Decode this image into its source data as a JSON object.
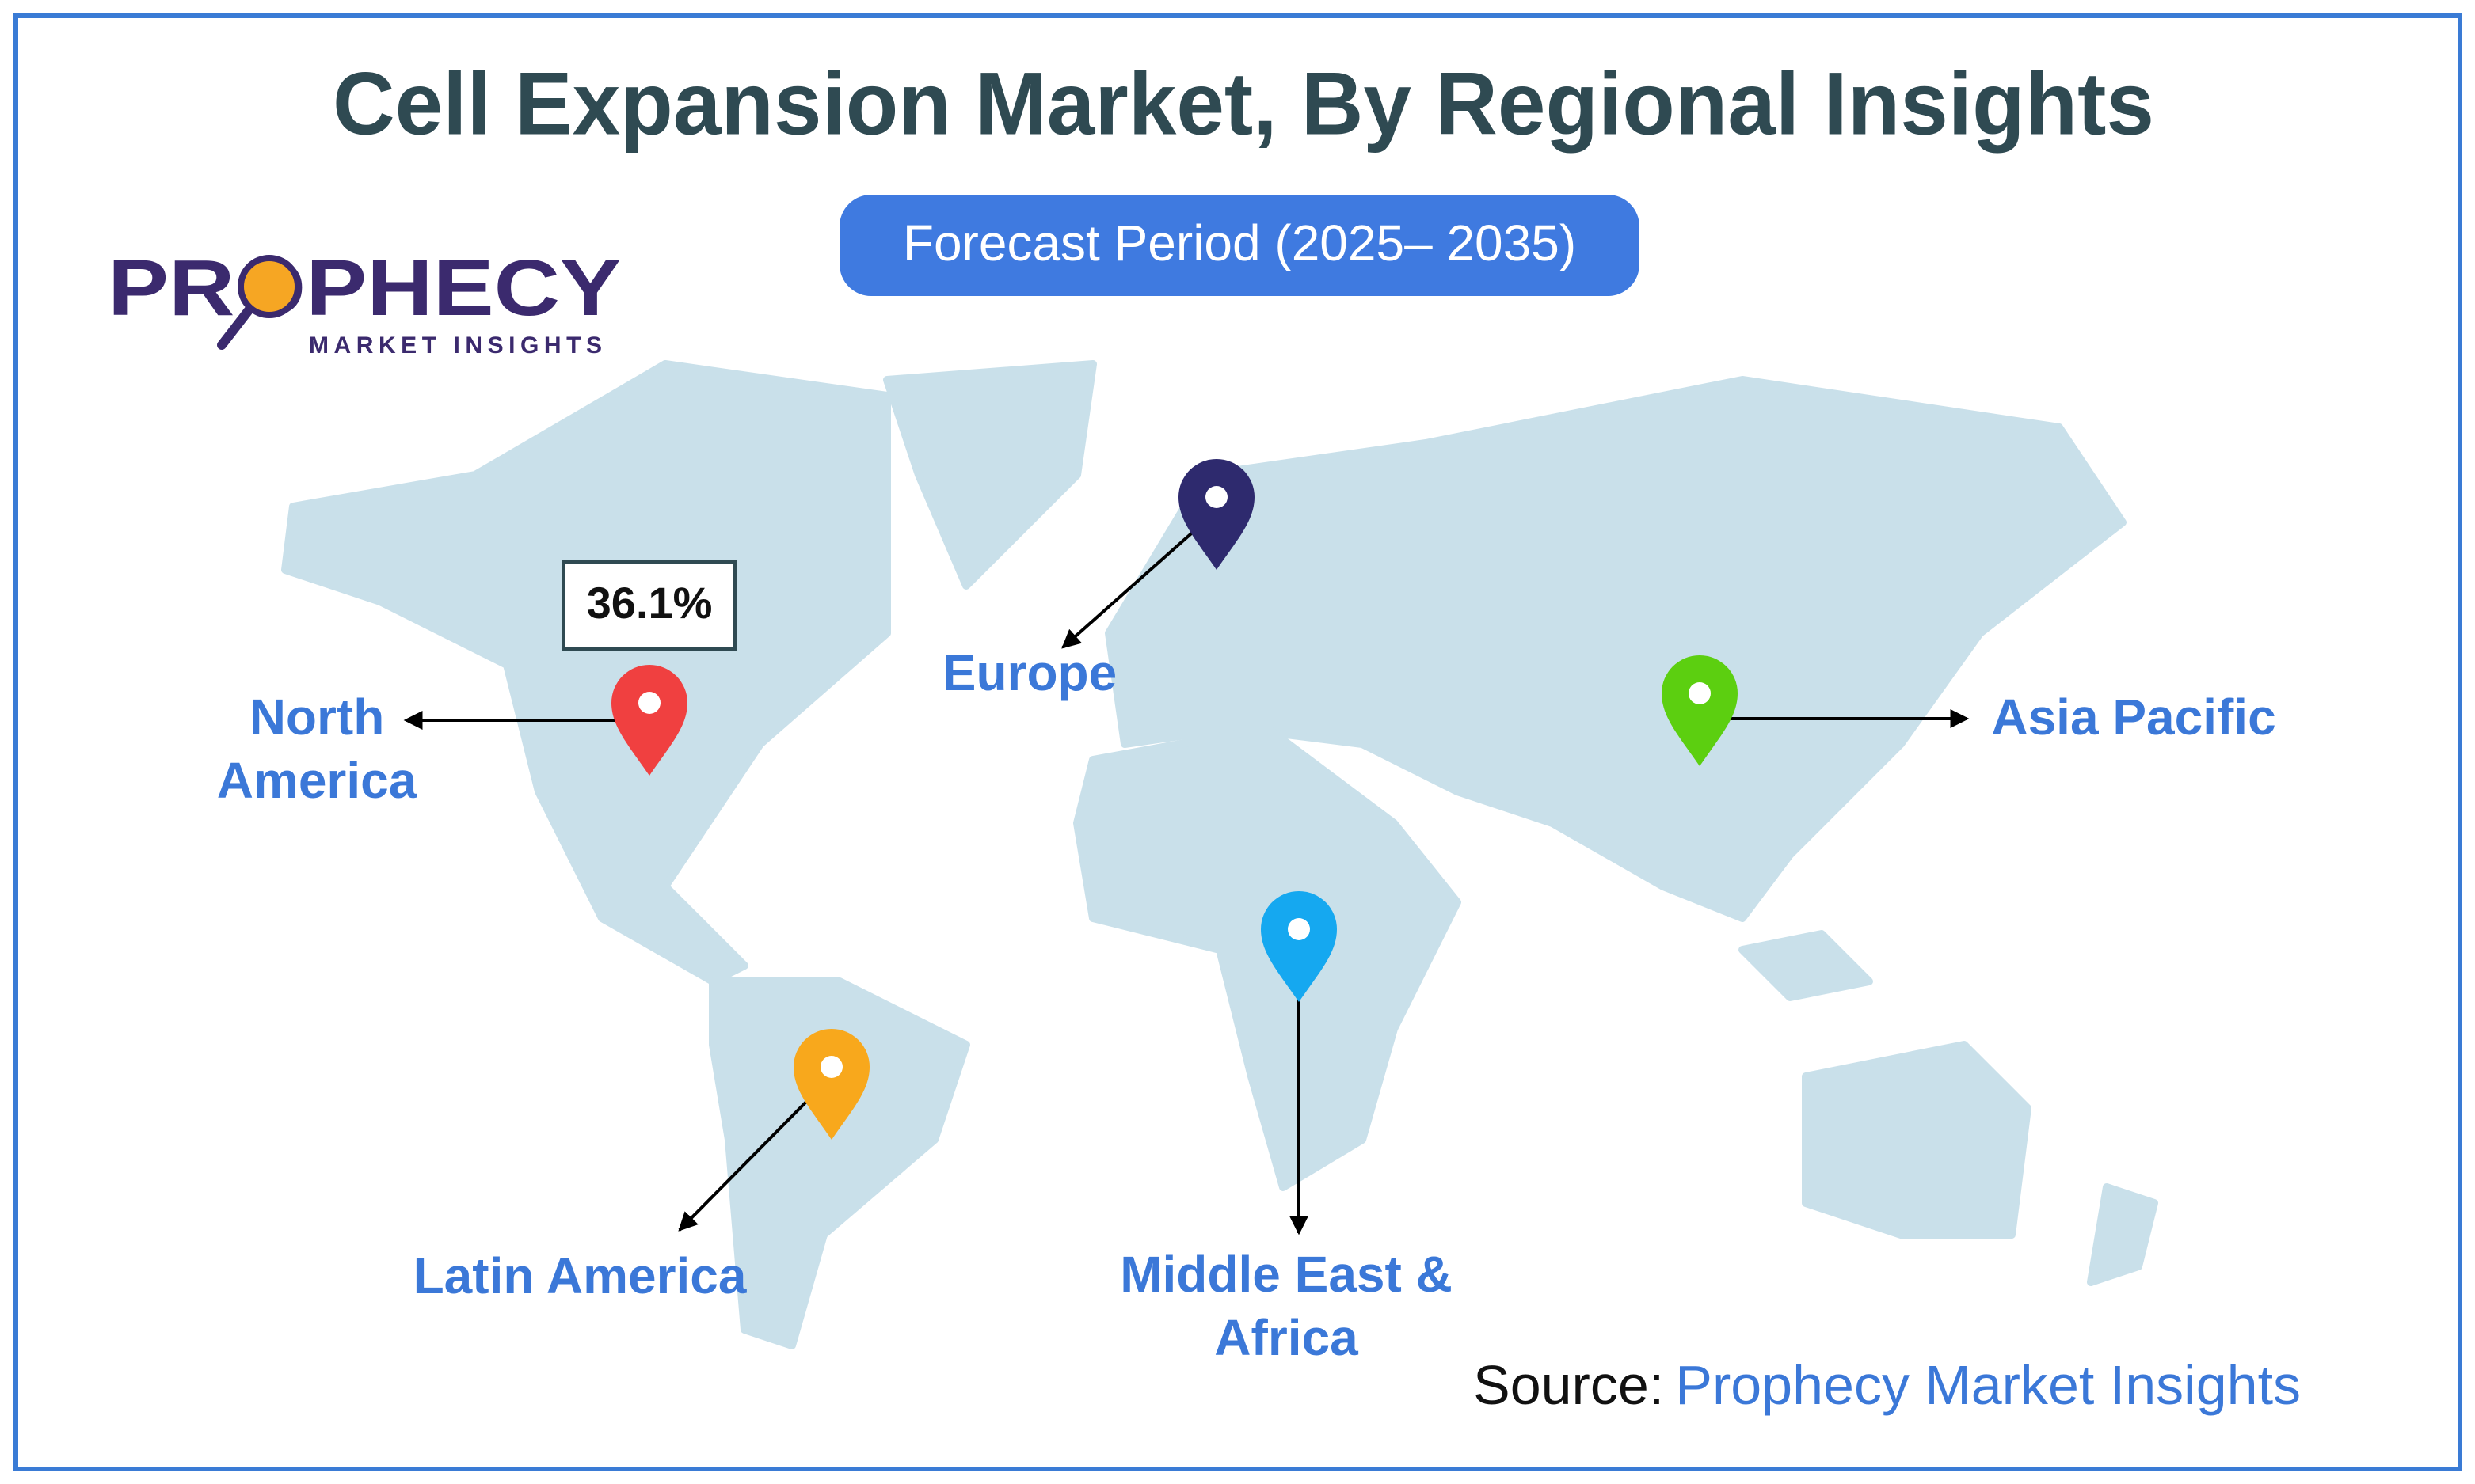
{
  "header": {
    "title": "Cell Expansion Market, By Regional Insights",
    "subtitle": "Forecast Period (2025– 2035)"
  },
  "logo": {
    "name": "PROPHECY",
    "tagline": "MARKET INSIGHTS"
  },
  "regions": [
    {
      "label": "North America",
      "share": "36.1%"
    },
    {
      "label": "Europe"
    },
    {
      "label": "Asia Pacific"
    },
    {
      "label": "Latin America"
    },
    {
      "label": "Middle East & Africa"
    }
  ],
  "source": {
    "prefix": "Source:",
    "name": "Prophecy Market Insights"
  }
}
